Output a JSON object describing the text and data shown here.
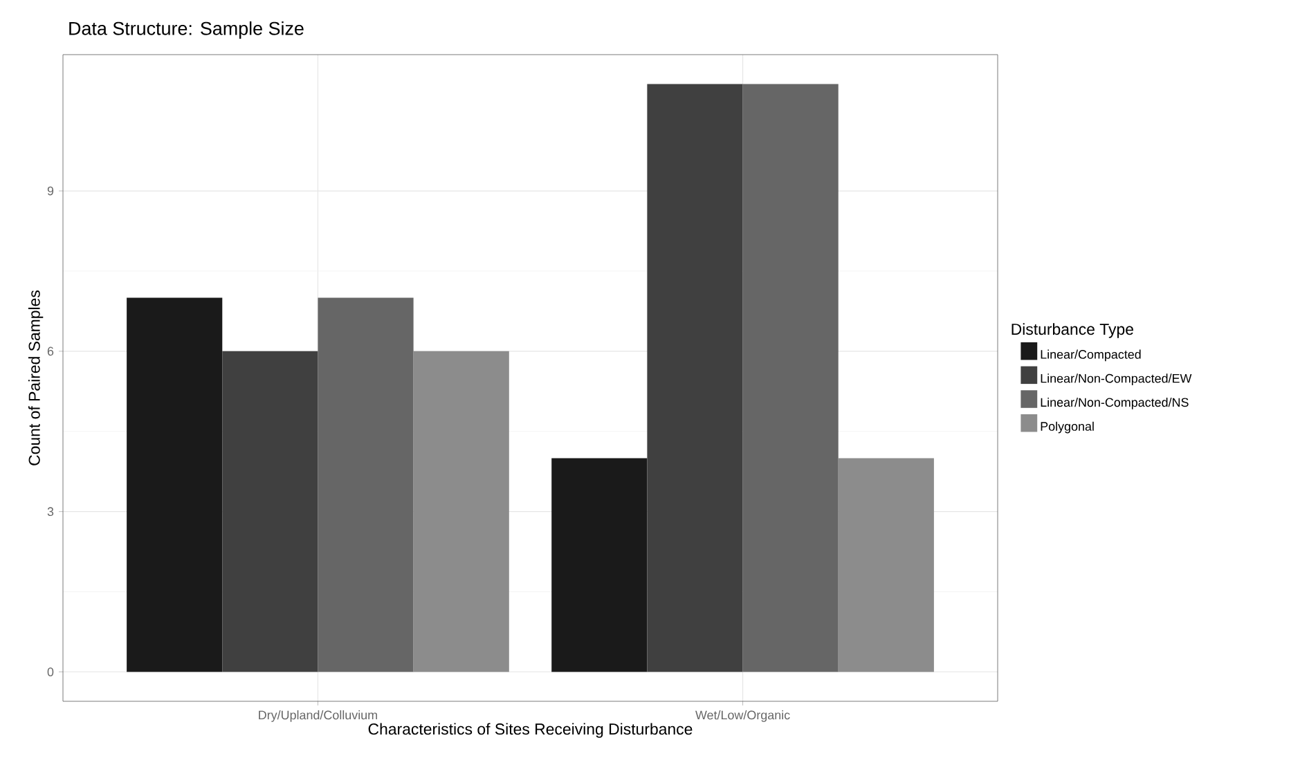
{
  "chart_data": {
    "type": "bar",
    "title": "Data Structure: Sample Size",
    "xlabel": "Characteristics of Sites Receiving Disturbance",
    "ylabel": "Count of Paired Samples",
    "legend_title": "Disturbance Type",
    "categories": [
      "Dry/Upland/Colluvium",
      "Wet/Low/Organic"
    ],
    "series": [
      {
        "name": "Linear/Compacted",
        "color": "#1a1a1a",
        "values": [
          7,
          4
        ]
      },
      {
        "name": "Linear/Non-Compacted/EW",
        "color": "#404040",
        "values": [
          6,
          11
        ]
      },
      {
        "name": "Linear/Non-Compacted/NS",
        "color": "#666666",
        "values": [
          7,
          11
        ]
      },
      {
        "name": "Polygonal",
        "color": "#8c8c8c",
        "values": [
          6,
          4
        ]
      }
    ],
    "ylim": [
      -0.55,
      11.55
    ],
    "yticks": [
      0,
      3,
      6,
      9
    ],
    "grid": true,
    "legend": "right"
  }
}
